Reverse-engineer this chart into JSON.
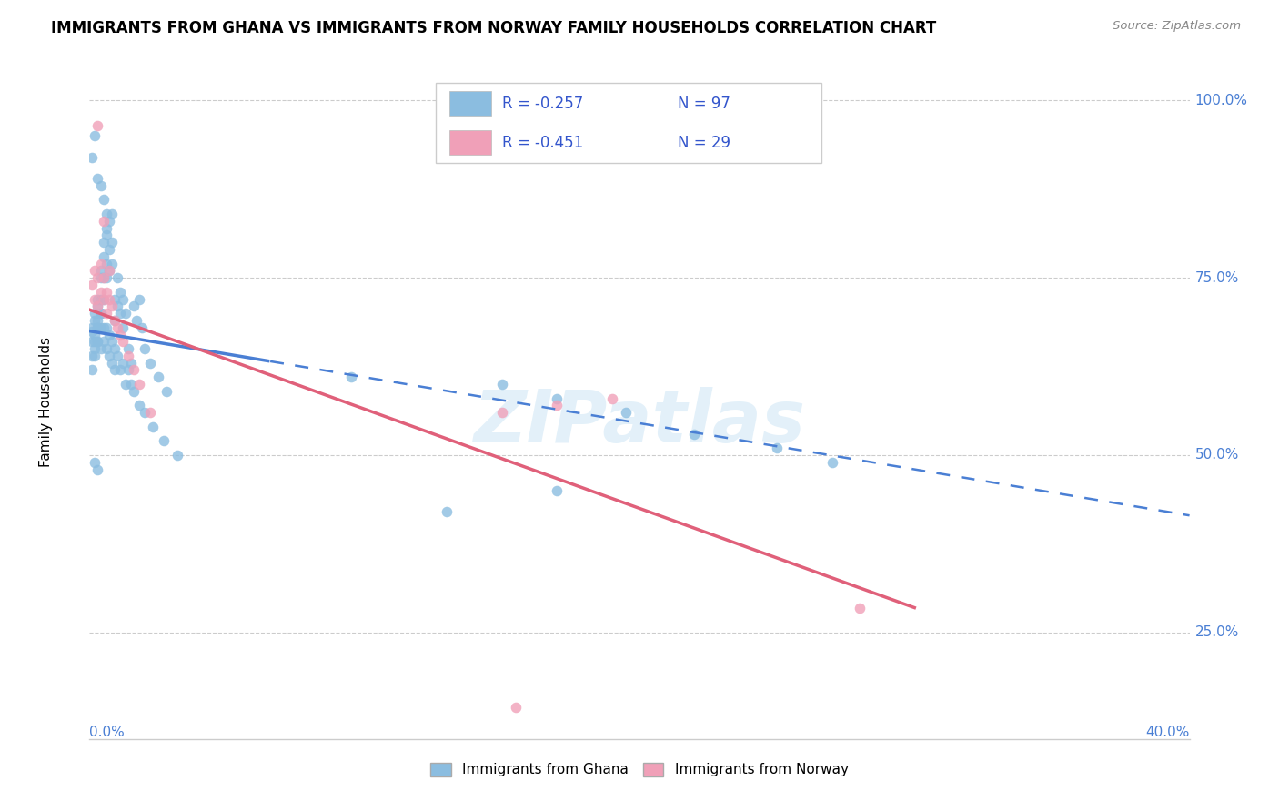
{
  "title": "IMMIGRANTS FROM GHANA VS IMMIGRANTS FROM NORWAY FAMILY HOUSEHOLDS CORRELATION CHART",
  "source": "Source: ZipAtlas.com",
  "ylabel": "Family Households",
  "ylabel_ticks": [
    "25.0%",
    "50.0%",
    "75.0%",
    "100.0%"
  ],
  "ylabel_tick_vals": [
    0.25,
    0.5,
    0.75,
    1.0
  ],
  "xlim": [
    0.0,
    0.4
  ],
  "ylim": [
    0.1,
    1.05
  ],
  "ghana_color": "#8bbde0",
  "norway_color": "#f0a0b8",
  "ghana_line_color": "#4a7fd4",
  "norway_line_color": "#e0607a",
  "ghana_R": -0.257,
  "ghana_N": 97,
  "norway_R": -0.451,
  "norway_N": 29,
  "legend_label_ghana": "Immigrants from Ghana",
  "legend_label_norway": "Immigrants from Norway",
  "watermark": "ZIPatlas",
  "ghana_line_x0": 0.0,
  "ghana_line_y0": 0.675,
  "ghana_line_x1": 0.4,
  "ghana_line_y1": 0.415,
  "ghana_line_solid_end": 0.065,
  "norway_line_x0": 0.0,
  "norway_line_y0": 0.705,
  "norway_line_x1": 0.3,
  "norway_line_y1": 0.285,
  "norway_line_solid_end": 0.3,
  "ghana_scatter_x": [
    0.001,
    0.001,
    0.001,
    0.002,
    0.002,
    0.002,
    0.002,
    0.003,
    0.003,
    0.003,
    0.003,
    0.003,
    0.004,
    0.004,
    0.004,
    0.004,
    0.004,
    0.005,
    0.005,
    0.005,
    0.005,
    0.006,
    0.006,
    0.006,
    0.006,
    0.007,
    0.007,
    0.007,
    0.008,
    0.008,
    0.008,
    0.009,
    0.009,
    0.01,
    0.01,
    0.011,
    0.011,
    0.012,
    0.012,
    0.013,
    0.014,
    0.015,
    0.016,
    0.017,
    0.018,
    0.019,
    0.02,
    0.022,
    0.025,
    0.028,
    0.001,
    0.001,
    0.002,
    0.002,
    0.003,
    0.003,
    0.004,
    0.004,
    0.005,
    0.005,
    0.006,
    0.006,
    0.007,
    0.007,
    0.008,
    0.008,
    0.009,
    0.009,
    0.01,
    0.011,
    0.012,
    0.013,
    0.014,
    0.015,
    0.016,
    0.018,
    0.02,
    0.023,
    0.027,
    0.032,
    0.001,
    0.002,
    0.003,
    0.004,
    0.005,
    0.006,
    0.002,
    0.003,
    0.095,
    0.15,
    0.17,
    0.195,
    0.22,
    0.25,
    0.27,
    0.17,
    0.13
  ],
  "ghana_scatter_y": [
    0.675,
    0.68,
    0.66,
    0.7,
    0.67,
    0.69,
    0.65,
    0.71,
    0.68,
    0.69,
    0.66,
    0.72,
    0.75,
    0.76,
    0.7,
    0.68,
    0.72,
    0.78,
    0.8,
    0.75,
    0.72,
    0.81,
    0.82,
    0.77,
    0.75,
    0.83,
    0.79,
    0.76,
    0.84,
    0.8,
    0.77,
    0.72,
    0.69,
    0.75,
    0.71,
    0.73,
    0.7,
    0.72,
    0.68,
    0.7,
    0.65,
    0.63,
    0.71,
    0.69,
    0.72,
    0.68,
    0.65,
    0.63,
    0.61,
    0.59,
    0.64,
    0.62,
    0.66,
    0.64,
    0.68,
    0.66,
    0.7,
    0.65,
    0.68,
    0.66,
    0.68,
    0.65,
    0.67,
    0.64,
    0.66,
    0.63,
    0.65,
    0.62,
    0.64,
    0.62,
    0.63,
    0.6,
    0.62,
    0.6,
    0.59,
    0.57,
    0.56,
    0.54,
    0.52,
    0.5,
    0.92,
    0.95,
    0.89,
    0.88,
    0.86,
    0.84,
    0.49,
    0.48,
    0.61,
    0.6,
    0.58,
    0.56,
    0.53,
    0.51,
    0.49,
    0.45,
    0.42
  ],
  "norway_scatter_x": [
    0.001,
    0.002,
    0.002,
    0.003,
    0.003,
    0.004,
    0.004,
    0.005,
    0.005,
    0.006,
    0.006,
    0.007,
    0.007,
    0.008,
    0.009,
    0.01,
    0.011,
    0.012,
    0.014,
    0.016,
    0.018,
    0.022,
    0.15,
    0.17,
    0.19,
    0.28,
    0.155,
    0.003,
    0.005
  ],
  "norway_scatter_y": [
    0.74,
    0.76,
    0.72,
    0.75,
    0.71,
    0.73,
    0.77,
    0.75,
    0.72,
    0.73,
    0.7,
    0.72,
    0.76,
    0.71,
    0.69,
    0.68,
    0.67,
    0.66,
    0.64,
    0.62,
    0.6,
    0.56,
    0.56,
    0.57,
    0.58,
    0.285,
    0.145,
    0.965,
    0.83
  ]
}
